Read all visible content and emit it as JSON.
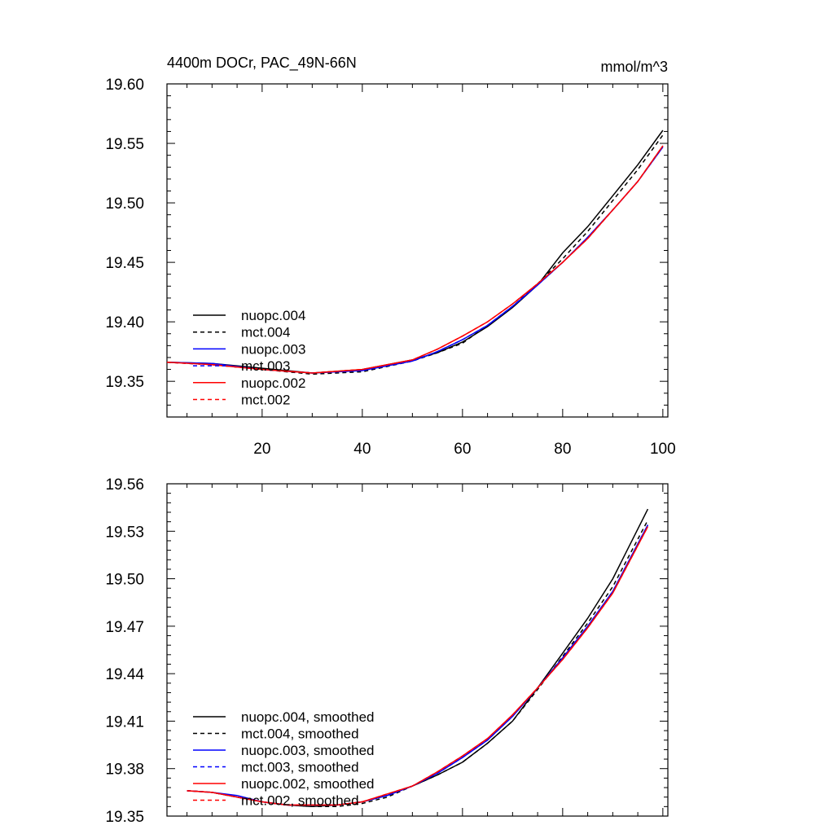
{
  "figure": {
    "title": "4400m DOCr, PAC_49N-66N",
    "units": "mmol/m^3"
  },
  "colors": {
    "black": "#000000",
    "blue": "#0000ff",
    "red": "#ff0000"
  },
  "chart_data": [
    {
      "type": "line",
      "title": "4400m DOCr, PAC_49N-66N",
      "units_label": "mmol/m^3",
      "xlim": [
        1,
        101
      ],
      "ylim": [
        19.32,
        19.6
      ],
      "x_ticks": [
        20,
        40,
        60,
        80,
        100
      ],
      "x_tick_labels": [
        "20",
        "40",
        "60",
        "80",
        "100"
      ],
      "y_ticks": [
        19.35,
        19.4,
        19.45,
        19.5,
        19.55,
        19.6
      ],
      "y_tick_labels": [
        "19.35",
        "19.40",
        "19.45",
        "19.50",
        "19.55",
        "19.60"
      ],
      "legend_position": "bottom-left",
      "series": [
        {
          "name": "nuopc.004",
          "color": "#000000",
          "dash": "solid",
          "x": [
            1,
            10,
            20,
            30,
            40,
            50,
            55,
            60,
            65,
            70,
            75,
            80,
            85,
            90,
            95,
            100
          ],
          "y": [
            19.366,
            19.365,
            19.361,
            19.357,
            19.36,
            19.368,
            19.374,
            19.383,
            19.396,
            19.412,
            19.431,
            19.458,
            19.48,
            19.506,
            19.532,
            19.561
          ]
        },
        {
          "name": "mct.004",
          "color": "#000000",
          "dash": "dashed",
          "x": [
            1,
            10,
            20,
            30,
            40,
            50,
            55,
            60,
            65,
            70,
            75,
            80,
            85,
            90,
            95,
            100
          ],
          "y": [
            19.366,
            19.364,
            19.36,
            19.356,
            19.358,
            19.367,
            19.374,
            19.382,
            19.397,
            19.413,
            19.432,
            19.453,
            19.476,
            19.502,
            19.528,
            19.557
          ]
        },
        {
          "name": "nuopc.003",
          "color": "#0000ff",
          "dash": "solid",
          "x": [
            1,
            10,
            20,
            30,
            40,
            50,
            55,
            60,
            65,
            70,
            75,
            80,
            85,
            90,
            95,
            100
          ],
          "y": [
            19.366,
            19.365,
            19.36,
            19.357,
            19.359,
            19.367,
            19.375,
            19.385,
            19.397,
            19.413,
            19.431,
            19.45,
            19.471,
            19.494,
            19.518,
            19.547
          ]
        },
        {
          "name": "mct.003",
          "color": "#0000ff",
          "dash": "dashed",
          "x": [
            1,
            10,
            20,
            30,
            40,
            50,
            55,
            60,
            65,
            70,
            75,
            80,
            85,
            90,
            95,
            100
          ],
          "y": [
            19.366,
            19.364,
            19.36,
            19.357,
            19.359,
            19.367,
            19.375,
            19.385,
            19.397,
            19.413,
            19.431,
            19.45,
            19.471,
            19.494,
            19.518,
            19.547
          ]
        },
        {
          "name": "nuopc.002",
          "color": "#ff0000",
          "dash": "solid",
          "x": [
            1,
            10,
            20,
            30,
            40,
            50,
            55,
            60,
            65,
            70,
            75,
            80,
            85,
            90,
            95,
            100
          ],
          "y": [
            19.366,
            19.364,
            19.36,
            19.357,
            19.36,
            19.368,
            19.377,
            19.388,
            19.4,
            19.415,
            19.432,
            19.45,
            19.47,
            19.494,
            19.518,
            19.548
          ]
        },
        {
          "name": "mct.002",
          "color": "#ff0000",
          "dash": "dashed",
          "x": [
            1,
            10,
            20,
            30,
            40,
            50,
            55,
            60,
            65,
            70,
            75,
            80,
            85,
            90,
            95,
            100
          ],
          "y": [
            19.366,
            19.364,
            19.36,
            19.357,
            19.36,
            19.368,
            19.377,
            19.388,
            19.4,
            19.415,
            19.432,
            19.45,
            19.47,
            19.494,
            19.518,
            19.548
          ]
        }
      ]
    },
    {
      "type": "line",
      "xlim": [
        1,
        101
      ],
      "ylim": [
        19.35,
        19.56
      ],
      "y_ticks": [
        19.35,
        19.38,
        19.41,
        19.44,
        19.47,
        19.5,
        19.53,
        19.56
      ],
      "y_tick_labels": [
        "19.35",
        "19.38",
        "19.41",
        "19.44",
        "19.47",
        "19.50",
        "19.53",
        "19.56"
      ],
      "legend_position": "bottom-left",
      "series": [
        {
          "name": "nuopc.004, smoothed",
          "color": "#000000",
          "dash": "solid",
          "x": [
            5,
            10,
            15,
            20,
            25,
            30,
            35,
            40,
            45,
            50,
            55,
            60,
            65,
            70,
            75,
            80,
            85,
            90,
            97
          ],
          "y": [
            19.366,
            19.365,
            19.362,
            19.359,
            19.357,
            19.356,
            19.357,
            19.359,
            19.363,
            19.369,
            19.376,
            19.384,
            19.396,
            19.41,
            19.431,
            19.453,
            19.475,
            19.5,
            19.544
          ]
        },
        {
          "name": "mct.004, smoothed",
          "color": "#000000",
          "dash": "dashed",
          "x": [
            5,
            10,
            15,
            20,
            25,
            30,
            35,
            40,
            45,
            50,
            55,
            60,
            65,
            70,
            75,
            80,
            85,
            90,
            97
          ],
          "y": [
            19.366,
            19.365,
            19.362,
            19.359,
            19.357,
            19.356,
            19.356,
            19.358,
            19.362,
            19.369,
            19.376,
            19.384,
            19.396,
            19.41,
            19.43,
            19.451,
            19.472,
            19.495,
            19.537
          ]
        },
        {
          "name": "nuopc.003, smoothed",
          "color": "#0000ff",
          "dash": "solid",
          "x": [
            5,
            10,
            15,
            20,
            25,
            30,
            35,
            40,
            45,
            50,
            55,
            60,
            65,
            70,
            75,
            80,
            85,
            90,
            97
          ],
          "y": [
            19.366,
            19.365,
            19.363,
            19.359,
            19.357,
            19.357,
            19.357,
            19.359,
            19.363,
            19.369,
            19.377,
            19.387,
            19.398,
            19.413,
            19.431,
            19.45,
            19.47,
            19.492,
            19.534
          ]
        },
        {
          "name": "mct.003, smoothed",
          "color": "#0000ff",
          "dash": "dashed",
          "x": [
            5,
            10,
            15,
            20,
            25,
            30,
            35,
            40,
            45,
            50,
            55,
            60,
            65,
            70,
            75,
            80,
            85,
            90,
            97
          ],
          "y": [
            19.366,
            19.365,
            19.362,
            19.359,
            19.357,
            19.357,
            19.357,
            19.359,
            19.363,
            19.369,
            19.377,
            19.387,
            19.398,
            19.413,
            19.431,
            19.45,
            19.47,
            19.492,
            19.534
          ]
        },
        {
          "name": "nuopc.002, smoothed",
          "color": "#ff0000",
          "dash": "solid",
          "x": [
            5,
            10,
            15,
            20,
            25,
            30,
            35,
            40,
            45,
            50,
            55,
            60,
            65,
            70,
            75,
            80,
            85,
            90,
            97
          ],
          "y": [
            19.366,
            19.365,
            19.362,
            19.359,
            19.357,
            19.357,
            19.357,
            19.359,
            19.364,
            19.369,
            19.378,
            19.388,
            19.399,
            19.414,
            19.431,
            19.449,
            19.469,
            19.491,
            19.533
          ]
        },
        {
          "name": "mct.002, smoothed",
          "color": "#ff0000",
          "dash": "dashed",
          "x": [
            5,
            10,
            15,
            20,
            25,
            30,
            35,
            40,
            45,
            50,
            55,
            60,
            65,
            70,
            75,
            80,
            85,
            90,
            97
          ],
          "y": [
            19.366,
            19.365,
            19.362,
            19.359,
            19.357,
            19.357,
            19.357,
            19.359,
            19.364,
            19.369,
            19.378,
            19.388,
            19.399,
            19.414,
            19.431,
            19.449,
            19.469,
            19.491,
            19.533
          ]
        }
      ]
    }
  ]
}
